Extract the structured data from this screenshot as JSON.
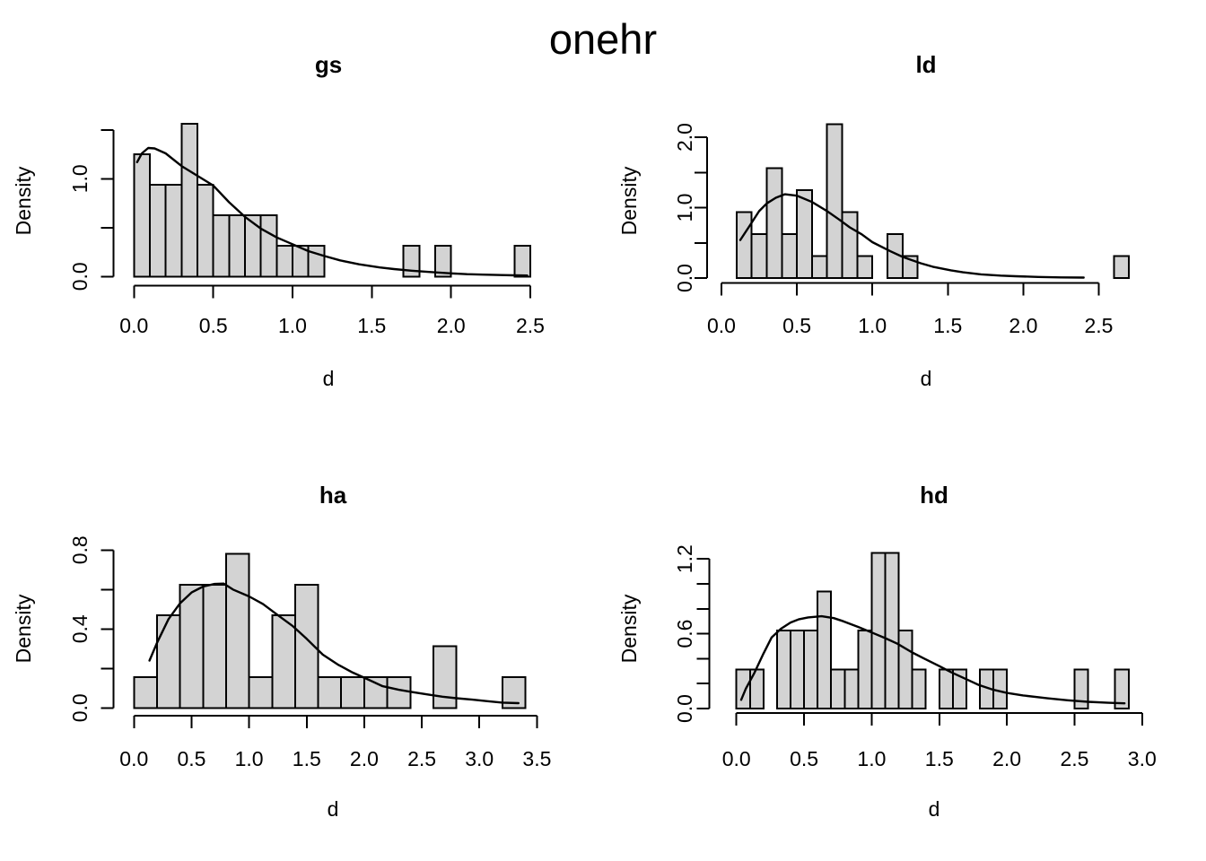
{
  "main_title": "onehr",
  "colors": {
    "background": "#ffffff",
    "bar_fill": "#d3d3d3",
    "stroke": "#000000"
  },
  "chart_data": [
    {
      "id": "gs",
      "type": "bar",
      "subtype": "histogram-with-density",
      "title": "gs",
      "xlabel": "d",
      "ylabel": "Density",
      "bin_start": 0.0,
      "bin_width": 0.1,
      "bar_heights": [
        1.25,
        0.9375,
        0.9375,
        1.5625,
        0.9375,
        0.625,
        0.625,
        0.625,
        0.625,
        0.3125,
        0.3125,
        0.3125,
        0,
        0,
        0,
        0,
        0,
        0.3125,
        0,
        0.3125,
        0,
        0,
        0,
        0,
        0.3125
      ],
      "xlim": [
        0,
        2.5
      ],
      "ylim": [
        0,
        1.5625
      ],
      "x_ticks": [
        {
          "v": 0.0,
          "label": "0.0"
        },
        {
          "v": 0.5,
          "label": "0.5"
        },
        {
          "v": 1.0,
          "label": "1.0"
        },
        {
          "v": 1.5,
          "label": "1.5"
        },
        {
          "v": 2.0,
          "label": "2.0"
        },
        {
          "v": 2.5,
          "label": "2.5"
        }
      ],
      "y_ticks": [
        {
          "v": 0.0,
          "label": "0.0"
        },
        {
          "v": 0.5,
          "label": ""
        },
        {
          "v": 1.0,
          "label": "1.0"
        },
        {
          "v": 1.5,
          "label": ""
        }
      ],
      "density_curve": [
        [
          0.02,
          1.17
        ],
        [
          0.05,
          1.26
        ],
        [
          0.09,
          1.315
        ],
        [
          0.13,
          1.31
        ],
        [
          0.2,
          1.26
        ],
        [
          0.3,
          1.13
        ],
        [
          0.4,
          1.03
        ],
        [
          0.5,
          0.93
        ],
        [
          0.6,
          0.76
        ],
        [
          0.7,
          0.61
        ],
        [
          0.8,
          0.49
        ],
        [
          0.9,
          0.4
        ],
        [
          1.0,
          0.33
        ],
        [
          1.1,
          0.26
        ],
        [
          1.2,
          0.21
        ],
        [
          1.3,
          0.165
        ],
        [
          1.42,
          0.125
        ],
        [
          1.55,
          0.093
        ],
        [
          1.64,
          0.076
        ],
        [
          1.75,
          0.06
        ],
        [
          1.87,
          0.046
        ],
        [
          2.0,
          0.032
        ],
        [
          2.1,
          0.024
        ],
        [
          2.2,
          0.019
        ],
        [
          2.32,
          0.015
        ],
        [
          2.4,
          0.012
        ],
        [
          2.48,
          0.01
        ]
      ]
    },
    {
      "id": "ld",
      "type": "bar",
      "subtype": "histogram-with-density",
      "title": "ld",
      "xlabel": "d",
      "ylabel": "Density",
      "bin_start": 0.0,
      "bin_width": 0.1,
      "bar_heights": [
        0,
        0.9375,
        0.625,
        1.5625,
        0.625,
        1.25,
        0.3125,
        2.1875,
        0.9375,
        0.3125,
        0,
        0.625,
        0.3125,
        0,
        0,
        0,
        0,
        0,
        0,
        0,
        0,
        0,
        0,
        0,
        0,
        0,
        0.3125
      ],
      "xlim": [
        0,
        2.7
      ],
      "ylim": [
        0,
        2.1875
      ],
      "x_ticks": [
        {
          "v": 0.0,
          "label": "0.0"
        },
        {
          "v": 0.5,
          "label": "0.5"
        },
        {
          "v": 1.0,
          "label": "1.0"
        },
        {
          "v": 1.5,
          "label": "1.5"
        },
        {
          "v": 2.0,
          "label": "2.0"
        },
        {
          "v": 2.5,
          "label": "2.5"
        }
      ],
      "y_ticks": [
        {
          "v": 0.0,
          "label": "0.0"
        },
        {
          "v": 0.5,
          "label": ""
        },
        {
          "v": 1.0,
          "label": "1.0"
        },
        {
          "v": 1.5,
          "label": ""
        },
        {
          "v": 2.0,
          "label": "2.0"
        }
      ],
      "density_curve": [
        [
          0.125,
          0.54
        ],
        [
          0.18,
          0.72
        ],
        [
          0.25,
          0.95
        ],
        [
          0.3,
          1.06
        ],
        [
          0.36,
          1.14
        ],
        [
          0.42,
          1.19
        ],
        [
          0.5,
          1.17
        ],
        [
          0.6,
          1.08
        ],
        [
          0.7,
          0.95
        ],
        [
          0.78,
          0.83
        ],
        [
          0.85,
          0.72
        ],
        [
          0.93,
          0.62
        ],
        [
          1.0,
          0.51
        ],
        [
          1.12,
          0.38
        ],
        [
          1.2,
          0.3
        ],
        [
          1.32,
          0.21
        ],
        [
          1.4,
          0.16
        ],
        [
          1.52,
          0.11
        ],
        [
          1.6,
          0.082
        ],
        [
          1.72,
          0.052
        ],
        [
          1.85,
          0.034
        ],
        [
          1.95,
          0.025
        ],
        [
          2.1,
          0.015
        ],
        [
          2.25,
          0.009
        ],
        [
          2.4,
          0.006
        ]
      ]
    },
    {
      "id": "ha",
      "type": "bar",
      "subtype": "histogram-with-density",
      "title": "ha",
      "xlabel": "d",
      "ylabel": "Density",
      "bin_start": 0.0,
      "bin_width": 0.2,
      "bar_heights": [
        0.15625,
        0.46875,
        0.625,
        0.625,
        0.78125,
        0.15625,
        0.46875,
        0.625,
        0.15625,
        0.15625,
        0.15625,
        0.15625,
        0,
        0.3125,
        0,
        0,
        0.15625
      ],
      "xlim": [
        0,
        3.5
      ],
      "ylim": [
        0,
        0.78125
      ],
      "x_ticks": [
        {
          "v": 0.0,
          "label": "0.0"
        },
        {
          "v": 0.5,
          "label": "0.5"
        },
        {
          "v": 1.0,
          "label": "1.0"
        },
        {
          "v": 1.5,
          "label": "1.5"
        },
        {
          "v": 2.0,
          "label": "2.0"
        },
        {
          "v": 2.5,
          "label": "2.5"
        },
        {
          "v": 3.0,
          "label": "3.0"
        },
        {
          "v": 3.5,
          "label": "3.5"
        }
      ],
      "y_ticks": [
        {
          "v": 0.0,
          "label": "0.0"
        },
        {
          "v": 0.2,
          "label": ""
        },
        {
          "v": 0.4,
          "label": "0.4"
        },
        {
          "v": 0.6,
          "label": ""
        },
        {
          "v": 0.8,
          "label": "0.8"
        }
      ],
      "density_curve": [
        [
          0.135,
          0.24
        ],
        [
          0.2,
          0.33
        ],
        [
          0.3,
          0.45
        ],
        [
          0.4,
          0.53
        ],
        [
          0.5,
          0.585
        ],
        [
          0.6,
          0.615
        ],
        [
          0.7,
          0.628
        ],
        [
          0.78,
          0.63
        ],
        [
          0.86,
          0.6
        ],
        [
          1.0,
          0.565
        ],
        [
          1.12,
          0.527
        ],
        [
          1.25,
          0.47
        ],
        [
          1.38,
          0.414
        ],
        [
          1.5,
          0.35
        ],
        [
          1.64,
          0.27
        ],
        [
          1.77,
          0.22
        ],
        [
          1.9,
          0.179
        ],
        [
          2.03,
          0.145
        ],
        [
          2.16,
          0.11
        ],
        [
          2.3,
          0.092
        ],
        [
          2.42,
          0.08
        ],
        [
          2.55,
          0.068
        ],
        [
          2.68,
          0.057
        ],
        [
          2.8,
          0.049
        ],
        [
          2.94,
          0.042
        ],
        [
          3.07,
          0.034
        ],
        [
          3.2,
          0.027
        ],
        [
          3.34,
          0.024
        ]
      ]
    },
    {
      "id": "hd",
      "type": "bar",
      "subtype": "histogram-with-density",
      "title": "hd",
      "xlabel": "d",
      "ylabel": "Density",
      "bin_start": 0.0,
      "bin_width": 0.1,
      "bar_heights": [
        0.3125,
        0.3125,
        0,
        0.625,
        0.625,
        0.625,
        0.9375,
        0.3125,
        0.3125,
        0.625,
        1.25,
        1.25,
        0.625,
        0.3125,
        0,
        0.3125,
        0.3125,
        0,
        0.3125,
        0.3125,
        0,
        0,
        0,
        0,
        0,
        0.3125,
        0,
        0,
        0.3125
      ],
      "xlim": [
        0,
        3.0
      ],
      "ylim": [
        0,
        1.25
      ],
      "x_ticks": [
        {
          "v": 0.0,
          "label": "0.0"
        },
        {
          "v": 0.5,
          "label": "0.5"
        },
        {
          "v": 1.0,
          "label": "1.0"
        },
        {
          "v": 1.5,
          "label": "1.5"
        },
        {
          "v": 2.0,
          "label": "2.0"
        },
        {
          "v": 2.5,
          "label": "2.5"
        },
        {
          "v": 3.0,
          "label": "3.0"
        }
      ],
      "y_ticks": [
        {
          "v": 0.0,
          "label": "0.0"
        },
        {
          "v": 0.2,
          "label": ""
        },
        {
          "v": 0.4,
          "label": ""
        },
        {
          "v": 0.6,
          "label": "0.6"
        },
        {
          "v": 0.8,
          "label": ""
        },
        {
          "v": 1.0,
          "label": ""
        },
        {
          "v": 1.2,
          "label": "1.2"
        }
      ],
      "density_curve": [
        [
          0.035,
          0.07
        ],
        [
          0.07,
          0.16
        ],
        [
          0.13,
          0.28
        ],
        [
          0.2,
          0.44
        ],
        [
          0.26,
          0.57
        ],
        [
          0.33,
          0.64
        ],
        [
          0.4,
          0.69
        ],
        [
          0.46,
          0.715
        ],
        [
          0.53,
          0.731
        ],
        [
          0.63,
          0.74
        ],
        [
          0.72,
          0.725
        ],
        [
          0.79,
          0.7
        ],
        [
          0.9,
          0.655
        ],
        [
          1.0,
          0.61
        ],
        [
          1.1,
          0.565
        ],
        [
          1.19,
          0.52
        ],
        [
          1.3,
          0.45
        ],
        [
          1.39,
          0.4
        ],
        [
          1.5,
          0.34
        ],
        [
          1.59,
          0.29
        ],
        [
          1.7,
          0.235
        ],
        [
          1.79,
          0.19
        ],
        [
          1.9,
          0.15
        ],
        [
          2.0,
          0.125
        ],
        [
          2.12,
          0.105
        ],
        [
          2.3,
          0.082
        ],
        [
          2.45,
          0.066
        ],
        [
          2.6,
          0.054
        ],
        [
          2.75,
          0.046
        ],
        [
          2.87,
          0.042
        ]
      ]
    }
  ]
}
